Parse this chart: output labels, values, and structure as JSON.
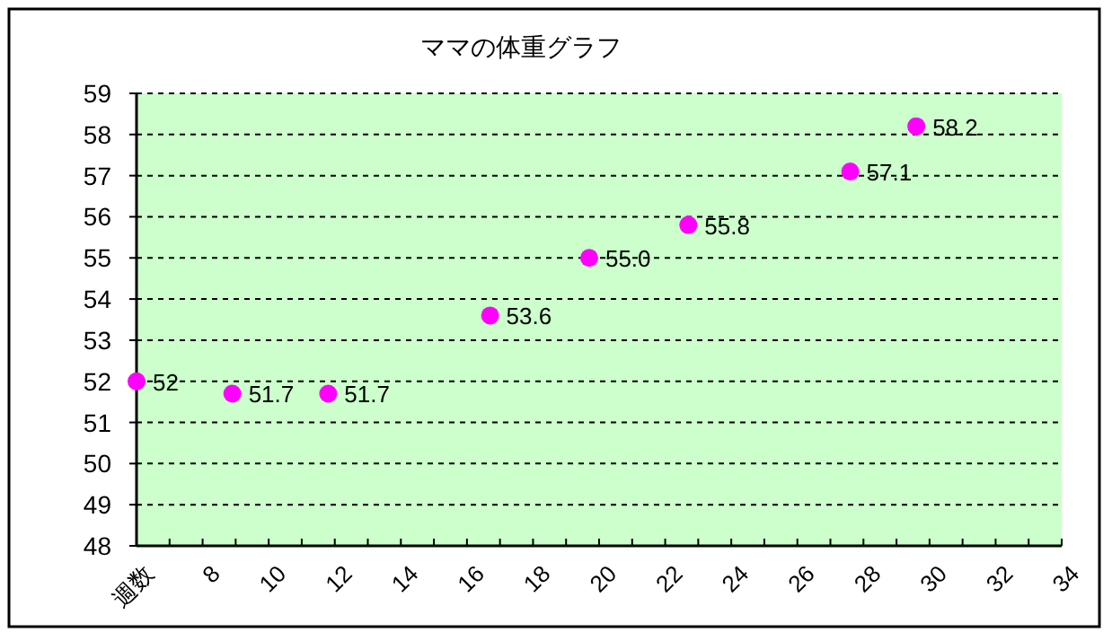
{
  "chart_data": {
    "type": "scatter",
    "title": "ママの体重グラフ",
    "x": [
      6,
      8.9,
      11.8,
      16.7,
      19.7,
      22.7,
      27.6,
      29.6
    ],
    "values": [
      52,
      51.7,
      51.7,
      53.6,
      55.0,
      55.8,
      57.1,
      58.2
    ],
    "value_labels": [
      "52",
      "51.7",
      "51.7",
      "53.6",
      "55.0",
      "55.8",
      "57.1",
      "58.2"
    ],
    "color": "#ff00ff",
    "marker": "circle",
    "xlim": [
      6,
      34
    ],
    "xticks": [
      {
        "value": 6,
        "label": "週数"
      },
      {
        "value": 7,
        "label": null
      },
      8,
      {
        "value": 9,
        "label": null
      },
      10,
      {
        "value": 11,
        "label": null
      },
      12,
      {
        "value": 13,
        "label": null
      },
      14,
      {
        "value": 15,
        "label": null
      },
      16,
      {
        "value": 17,
        "label": null
      },
      18,
      {
        "value": 19,
        "label": null
      },
      20,
      {
        "value": 21,
        "label": null
      },
      22,
      {
        "value": 23,
        "label": null
      },
      24,
      {
        "value": 25,
        "label": null
      },
      26,
      {
        "value": 27,
        "label": null
      },
      28,
      {
        "value": 29,
        "label": null
      },
      30,
      {
        "value": 31,
        "label": null
      },
      32,
      {
        "value": 33,
        "label": null
      },
      34
    ],
    "ylim": [
      48,
      59
    ],
    "yticks": [
      48,
      49,
      50,
      51,
      52,
      53,
      54,
      55,
      56,
      57,
      58,
      59
    ],
    "grid": "y"
  }
}
